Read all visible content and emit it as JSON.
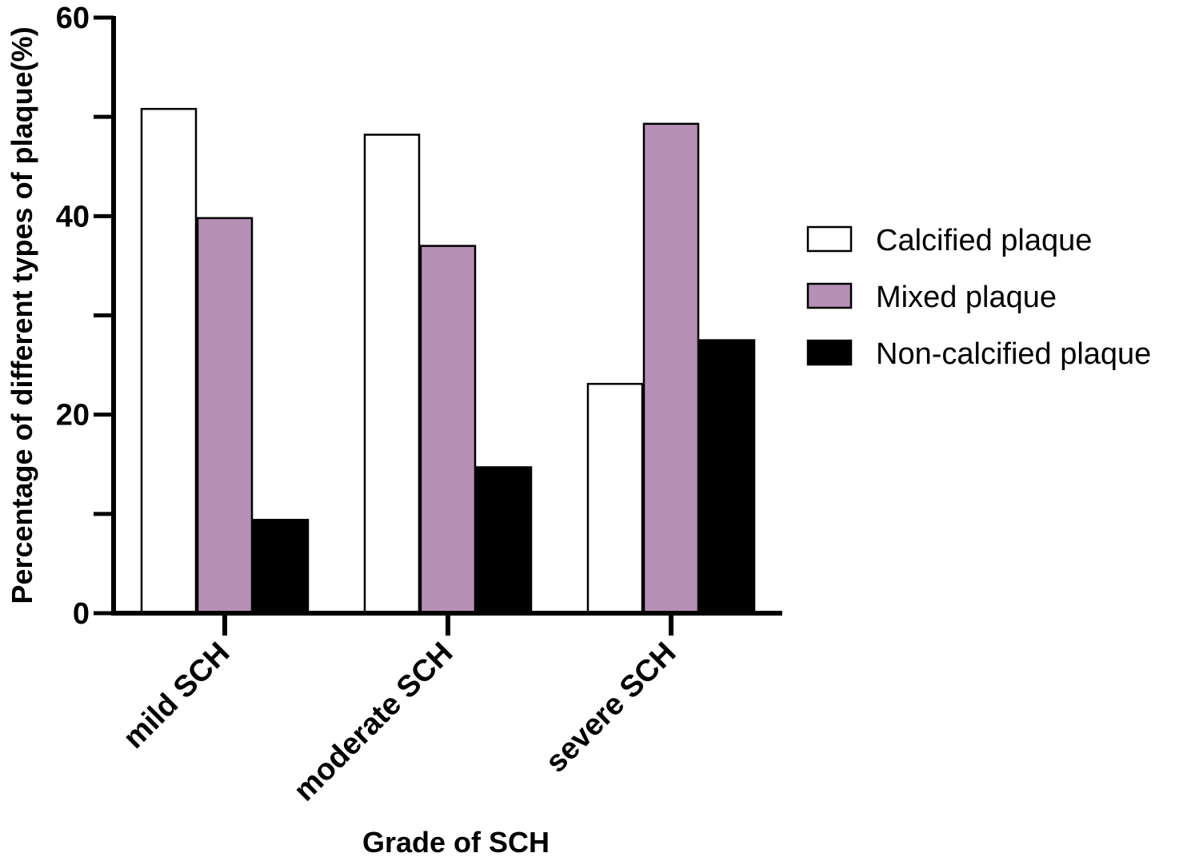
{
  "chart_data": {
    "type": "bar",
    "title": "",
    "xlabel": "Grade of SCH",
    "ylabel": "Percentage of different types of plaque(%)",
    "ylim": [
      0,
      60
    ],
    "yticks": [
      0,
      20,
      40,
      60
    ],
    "yticks_labels": [
      "0",
      "20",
      "40",
      "60"
    ],
    "categories": [
      "mild SCH",
      "moderate SCH",
      "severe SCH"
    ],
    "series": [
      {
        "name": "Calcified plaque",
        "values": [
          50.8,
          48.2,
          23.1
        ],
        "color": "#ffffff"
      },
      {
        "name": "Mixed plaque",
        "values": [
          39.8,
          37.0,
          49.3
        ],
        "color": "#b690b4"
      },
      {
        "name": "Non-calcified plaque",
        "values": [
          9.4,
          14.7,
          27.5
        ],
        "color": "#000000"
      }
    ],
    "grid": false,
    "legend_position": "right"
  }
}
